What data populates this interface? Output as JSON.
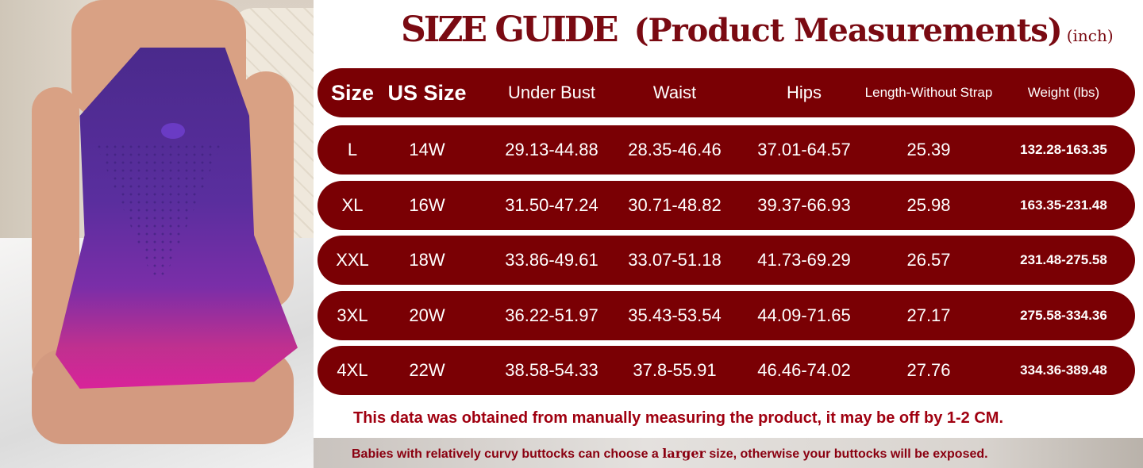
{
  "title": {
    "main": "SIZE GUIDE",
    "sub": "(Product Measurements)",
    "unit": "(inch)"
  },
  "headers": [
    "Size",
    "US Size",
    "Under Bust",
    "Waist",
    "Hips",
    "Length-Without Strap",
    "Weight  (lbs)"
  ],
  "rows": [
    [
      "L",
      "14W",
      "29.13-44.88",
      "28.35-46.46",
      "37.01-64.57",
      "25.39",
      "132.28-163.35"
    ],
    [
      "XL",
      "16W",
      "31.50-47.24",
      "30.71-48.82",
      "39.37-66.93",
      "25.98",
      "163.35-231.48"
    ],
    [
      "XXL",
      "18W",
      "33.86-49.61",
      "33.07-51.18",
      "41.73-69.29",
      "26.57",
      "231.48-275.58"
    ],
    [
      "3XL",
      "20W",
      "36.22-51.97",
      "35.43-53.54",
      "44.09-71.65",
      "27.17",
      "275.58-334.36"
    ],
    [
      "4XL",
      "22W",
      "38.58-54.33",
      "37.8-55.91",
      "46.46-74.02",
      "27.76",
      "334.36-389.48"
    ]
  ],
  "note": "This data was obtained from manually measuring the product, it may be off by 1-2 CM.",
  "footer": {
    "before": "Babies with relatively curvy buttocks can choose a ",
    "bold": "larger",
    "after": " size, otherwise your buttocks will be exposed."
  },
  "colors": {
    "row": "#7a0004",
    "title": "#7a0a12",
    "note": "#a00010"
  }
}
